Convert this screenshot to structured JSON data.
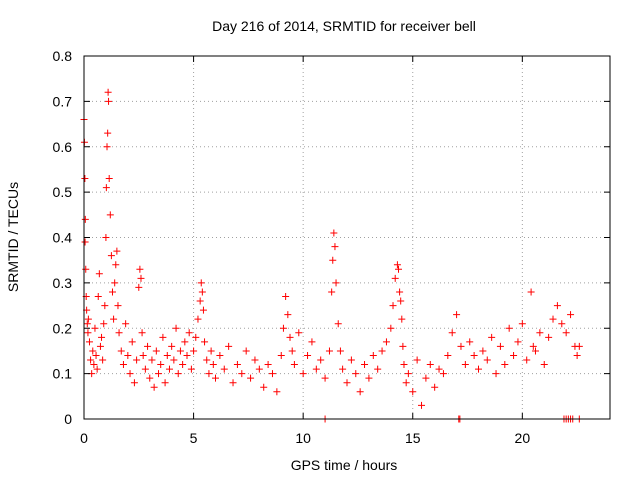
{
  "chart_data": {
    "type": "scatter",
    "title": "Day 216 of 2014, SRMTID for receiver bell",
    "xlabel": "GPS time / hours",
    "ylabel": "SRMTID / TECUs",
    "xlim": [
      0,
      24
    ],
    "ylim": [
      0,
      0.8
    ],
    "xticks": [
      0,
      5,
      10,
      15,
      20
    ],
    "yticks": [
      0,
      0.1,
      0.2,
      0.3,
      0.4,
      0.5,
      0.6,
      0.7,
      0.8
    ],
    "xtick_labels": [
      "0",
      "5",
      "10",
      "15",
      "20"
    ],
    "ytick_labels": [
      "0",
      "0.1",
      "0.2",
      "0.3",
      "0.4",
      "0.5",
      "0.6",
      "0.7",
      "0.8"
    ],
    "grid": true,
    "marker": "+",
    "color": "#ff0000",
    "series": [
      {
        "name": "SRMTID",
        "x": [
          0.0,
          0.02,
          0.04,
          0.05,
          0.06,
          0.08,
          0.1,
          0.12,
          0.15,
          0.18,
          0.2,
          0.25,
          0.3,
          0.35,
          0.4,
          0.45,
          0.5,
          0.55,
          0.6,
          0.65,
          0.7,
          0.75,
          0.8,
          0.85,
          0.9,
          0.95,
          1.0,
          1.02,
          1.05,
          1.08,
          1.1,
          1.12,
          1.15,
          1.2,
          1.25,
          1.3,
          1.35,
          1.4,
          1.45,
          1.5,
          1.55,
          1.6,
          1.7,
          1.8,
          1.9,
          2.0,
          2.1,
          2.2,
          2.3,
          2.4,
          2.5,
          2.55,
          2.6,
          2.65,
          2.7,
          2.8,
          2.9,
          3.0,
          3.1,
          3.2,
          3.3,
          3.4,
          3.5,
          3.6,
          3.7,
          3.8,
          3.9,
          4.0,
          4.1,
          4.2,
          4.3,
          4.4,
          4.5,
          4.6,
          4.7,
          4.8,
          4.9,
          5.0,
          5.1,
          5.2,
          5.3,
          5.35,
          5.4,
          5.45,
          5.5,
          5.6,
          5.7,
          5.8,
          5.9,
          6.0,
          6.2,
          6.4,
          6.6,
          6.8,
          7.0,
          7.2,
          7.4,
          7.6,
          7.8,
          8.0,
          8.2,
          8.4,
          8.6,
          8.8,
          9.0,
          9.1,
          9.2,
          9.3,
          9.4,
          9.5,
          9.6,
          9.8,
          10.0,
          10.2,
          10.4,
          10.6,
          10.8,
          11.0,
          11.2,
          11.3,
          11.35,
          11.4,
          11.45,
          11.5,
          11.6,
          11.7,
          11.8,
          12.0,
          12.2,
          12.4,
          12.6,
          12.8,
          13.0,
          13.2,
          13.4,
          13.6,
          13.8,
          14.0,
          14.1,
          14.2,
          14.3,
          14.35,
          14.4,
          14.45,
          14.5,
          14.55,
          14.6,
          14.7,
          14.8,
          15.0,
          15.2,
          15.4,
          15.6,
          15.8,
          16.0,
          16.2,
          16.4,
          16.6,
          16.8,
          17.0,
          17.2,
          17.4,
          17.6,
          17.8,
          18.0,
          18.2,
          18.4,
          18.6,
          18.8,
          19.0,
          19.2,
          19.4,
          19.6,
          19.8,
          20.0,
          20.2,
          20.4,
          20.5,
          20.6,
          20.8,
          21.0,
          21.2,
          21.4,
          21.6,
          21.8,
          22.0,
          22.2,
          22.4,
          22.5,
          22.6,
          11.0,
          17.1,
          17.15,
          21.9,
          22.0,
          22.1,
          22.2,
          22.3,
          22.6
        ],
        "y": [
          0.66,
          0.61,
          0.53,
          0.39,
          0.44,
          0.33,
          0.27,
          0.24,
          0.21,
          0.19,
          0.22,
          0.17,
          0.13,
          0.1,
          0.15,
          0.12,
          0.2,
          0.14,
          0.11,
          0.27,
          0.32,
          0.16,
          0.18,
          0.13,
          0.21,
          0.25,
          0.4,
          0.51,
          0.6,
          0.63,
          0.72,
          0.7,
          0.53,
          0.45,
          0.36,
          0.28,
          0.22,
          0.3,
          0.34,
          0.37,
          0.25,
          0.19,
          0.15,
          0.12,
          0.21,
          0.14,
          0.1,
          0.17,
          0.08,
          0.13,
          0.29,
          0.33,
          0.31,
          0.19,
          0.14,
          0.11,
          0.16,
          0.09,
          0.13,
          0.07,
          0.15,
          0.1,
          0.12,
          0.18,
          0.08,
          0.14,
          0.11,
          0.16,
          0.13,
          0.2,
          0.1,
          0.15,
          0.12,
          0.17,
          0.14,
          0.19,
          0.11,
          0.15,
          0.18,
          0.22,
          0.26,
          0.3,
          0.28,
          0.24,
          0.17,
          0.13,
          0.1,
          0.15,
          0.12,
          0.09,
          0.14,
          0.11,
          0.16,
          0.08,
          0.12,
          0.1,
          0.15,
          0.09,
          0.13,
          0.11,
          0.07,
          0.12,
          0.1,
          0.06,
          0.14,
          0.2,
          0.27,
          0.23,
          0.18,
          0.15,
          0.12,
          0.19,
          0.1,
          0.14,
          0.17,
          0.11,
          0.13,
          0.09,
          0.15,
          0.28,
          0.35,
          0.41,
          0.38,
          0.3,
          0.21,
          0.15,
          0.11,
          0.08,
          0.13,
          0.1,
          0.06,
          0.12,
          0.09,
          0.14,
          0.11,
          0.15,
          0.17,
          0.2,
          0.25,
          0.31,
          0.34,
          0.33,
          0.28,
          0.26,
          0.22,
          0.16,
          0.12,
          0.08,
          0.1,
          0.06,
          0.13,
          0.03,
          0.09,
          0.12,
          0.07,
          0.11,
          0.1,
          0.14,
          0.19,
          0.23,
          0.16,
          0.12,
          0.17,
          0.14,
          0.11,
          0.15,
          0.13,
          0.18,
          0.1,
          0.16,
          0.12,
          0.2,
          0.14,
          0.17,
          0.21,
          0.13,
          0.28,
          0.16,
          0.15,
          0.19,
          0.12,
          0.18,
          0.22,
          0.25,
          0.21,
          0.19,
          0.23,
          0.16,
          0.14,
          0.16,
          0.0,
          0.0,
          0.0,
          0.0,
          0.0,
          0.0,
          0.0,
          0.0,
          0.0
        ]
      }
    ]
  }
}
